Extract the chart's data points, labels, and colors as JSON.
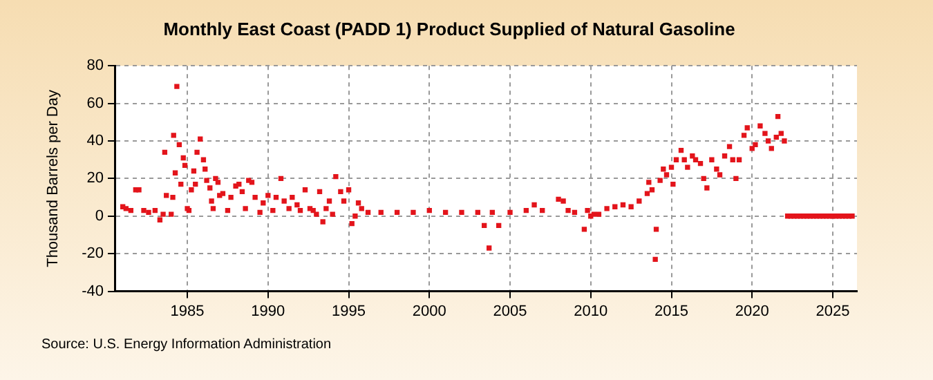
{
  "chart_data": {
    "type": "scatter",
    "title": "Monthly East Coast (PADD 1) Product Supplied of Natural Gasoline",
    "ylabel": "Thousand Barrels per Day",
    "annotations": [
      "Source: U.S. Energy Information Administration"
    ],
    "x": [
      1981.0,
      1981.2,
      1981.5,
      1981.8,
      1982.0,
      1982.3,
      1982.6,
      1983.0,
      1983.3,
      1983.5,
      1983.6,
      1983.7,
      1984.0,
      1984.1,
      1984.15,
      1984.25,
      1984.35,
      1984.5,
      1984.6,
      1984.75,
      1984.85,
      1985.0,
      1985.1,
      1985.25,
      1985.4,
      1985.5,
      1985.6,
      1985.8,
      1986.0,
      1986.1,
      1986.2,
      1986.4,
      1986.5,
      1986.6,
      1986.75,
      1986.9,
      1987.0,
      1987.2,
      1987.5,
      1987.7,
      1988.0,
      1988.2,
      1988.4,
      1988.6,
      1988.8,
      1989.0,
      1989.2,
      1989.5,
      1989.7,
      1990.0,
      1990.3,
      1990.5,
      1990.8,
      1991.0,
      1991.3,
      1991.5,
      1991.8,
      1992.0,
      1992.3,
      1992.6,
      1992.8,
      1993.0,
      1993.2,
      1993.4,
      1993.6,
      1993.8,
      1994.0,
      1994.2,
      1994.5,
      1994.7,
      1995.0,
      1995.2,
      1995.4,
      1995.6,
      1995.8,
      1996.2,
      1997.0,
      1998.0,
      1999.0,
      2000.0,
      2001.0,
      2002.0,
      2003.0,
      2003.4,
      2003.7,
      2003.9,
      2004.3,
      2005.0,
      2006.0,
      2006.5,
      2007.0,
      2008.0,
      2008.3,
      2008.6,
      2009.0,
      2009.6,
      2009.8,
      2010.0,
      2010.2,
      2010.5,
      2011.0,
      2011.5,
      2012.0,
      2012.5,
      2013.0,
      2013.5,
      2013.6,
      2013.8,
      2014.0,
      2014.06,
      2014.3,
      2014.5,
      2014.7,
      2015.0,
      2015.1,
      2015.3,
      2015.6,
      2015.8,
      2016.0,
      2016.3,
      2016.5,
      2016.8,
      2017.0,
      2017.2,
      2017.5,
      2017.8,
      2018.0,
      2018.3,
      2018.6,
      2018.8,
      2019.0,
      2019.2,
      2019.5,
      2019.7,
      2020.0,
      2020.2,
      2020.5,
      2020.8,
      2021.0,
      2021.2,
      2021.5,
      2021.6,
      2021.8,
      2022.0,
      2022.2,
      2022.4,
      2022.6,
      2022.8,
      2023.0,
      2023.2,
      2023.4,
      2023.6,
      2023.8,
      2024.0,
      2024.2,
      2024.4,
      2024.6,
      2024.8,
      2025.0,
      2025.2,
      2025.4,
      2025.6,
      2025.8,
      2026.0,
      2026.2
    ],
    "values": [
      5,
      4,
      3,
      14,
      14,
      3,
      2,
      3,
      -2,
      1,
      34,
      11,
      1,
      10,
      43,
      23,
      69,
      38,
      17,
      31,
      27,
      4,
      3,
      14,
      24,
      17,
      34,
      41,
      30,
      25,
      19,
      15,
      8,
      4,
      20,
      18,
      11,
      12,
      3,
      10,
      16,
      17,
      13,
      4,
      19,
      18,
      10,
      2,
      7,
      11,
      3,
      10,
      20,
      8,
      4,
      10,
      6,
      3,
      14,
      4,
      3,
      1,
      13,
      -3,
      4,
      8,
      1,
      21,
      13,
      8,
      14,
      -4,
      0,
      7,
      4,
      2,
      2,
      2,
      2,
      3,
      2,
      2,
      2,
      -5,
      -17,
      2,
      -5,
      2,
      3,
      6,
      3,
      9,
      8,
      3,
      2,
      -7,
      3,
      0,
      1,
      1,
      4,
      5,
      6,
      5,
      8,
      12,
      18,
      14,
      -23,
      -7,
      19,
      25,
      22,
      26,
      17,
      30,
      35,
      30,
      26,
      32,
      30,
      28,
      20,
      15,
      30,
      25,
      22,
      32,
      37,
      30,
      20,
      30,
      43,
      47,
      36,
      38,
      48,
      44,
      40,
      36,
      42,
      53,
      44,
      40,
      0,
      0,
      0,
      0,
      0,
      0,
      0,
      0,
      0,
      0,
      0,
      0,
      0,
      0,
      0,
      0,
      0,
      0,
      0,
      0,
      0
    ],
    "color": "#e3141b",
    "marker": "square",
    "xlim": [
      1980.5,
      2026.5
    ],
    "xticks": [
      1985,
      1990,
      1995,
      2000,
      2005,
      2010,
      2015,
      2020,
      2025
    ],
    "ylim": [
      -40,
      80
    ],
    "yticks": [
      -40,
      -20,
      0,
      20,
      40,
      60,
      80
    ],
    "grid": true,
    "legend": false
  }
}
